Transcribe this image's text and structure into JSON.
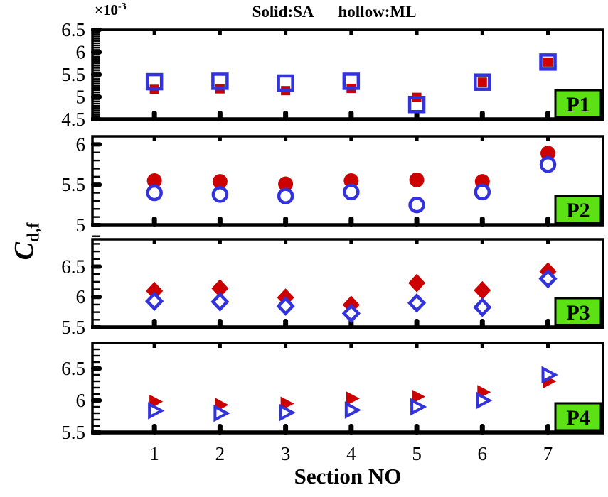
{
  "chart_data": {
    "type": "scatter",
    "title": "Solid:SA    hollow:ML",
    "title_parts": {
      "solid": "Solid:SA",
      "hollow": "hollow:ML"
    },
    "xlabel": "Section NO",
    "ylabel_main": "C",
    "ylabel_sub": "d,f",
    "scale": {
      "base": "×10",
      "exp": "-3"
    },
    "x": [
      1,
      2,
      3,
      4,
      5,
      6,
      7
    ],
    "xlim": [
      0.055,
      7.84
    ],
    "series_names": {
      "solid": "SA",
      "hollow": "ML"
    },
    "panels": [
      {
        "label": "P1",
        "marker": "square",
        "ylim": [
          4.5,
          6.5
        ],
        "yticks": [
          4.5,
          5,
          5.5,
          6,
          6.5
        ],
        "minor_step": 0.05,
        "hollow_fill": "none",
        "series": {
          "SA": [
            5.17,
            5.18,
            5.14,
            5.19,
            4.99,
            5.33,
            5.78
          ],
          "ML": [
            5.34,
            5.35,
            5.31,
            5.35,
            4.83,
            5.33,
            5.78
          ]
        }
      },
      {
        "label": "P2",
        "marker": "circle",
        "ylim": [
          5.0,
          6.1
        ],
        "yticks": [
          5,
          5.5,
          6
        ],
        "minor_step": 0.1,
        "hollow_fill": "white",
        "series": {
          "SA": [
            5.55,
            5.54,
            5.51,
            5.55,
            5.56,
            5.54,
            5.89
          ],
          "ML": [
            5.4,
            5.38,
            5.36,
            5.41,
            5.25,
            5.41,
            5.75
          ]
        }
      },
      {
        "label": "P3",
        "marker": "diamond",
        "ylim": [
          5.5,
          6.95
        ],
        "yticks": [
          5.5,
          6,
          6.5
        ],
        "minor_step": 0.125,
        "hollow_fill": "white",
        "series": {
          "SA": [
            6.1,
            6.14,
            5.99,
            5.87,
            6.23,
            6.11,
            6.42
          ],
          "ML": [
            5.93,
            5.92,
            5.85,
            5.73,
            5.9,
            5.83,
            6.3
          ]
        }
      },
      {
        "label": "P4",
        "marker": "triangle-right",
        "ylim": [
          5.5,
          6.9
        ],
        "yticks": [
          5.5,
          6,
          6.5
        ],
        "minor_step": 0.1,
        "hollow_fill": "white",
        "series": {
          "SA": [
            5.98,
            5.93,
            5.95,
            6.03,
            6.06,
            6.13,
            6.3
          ],
          "ML": [
            5.84,
            5.8,
            5.81,
            5.85,
            5.9,
            6.0,
            6.4
          ]
        }
      }
    ],
    "colors": {
      "solid": "#CC0000",
      "hollow": "#3333DD",
      "panel_label_bg": "#5CE114",
      "axis": "#000000"
    }
  }
}
